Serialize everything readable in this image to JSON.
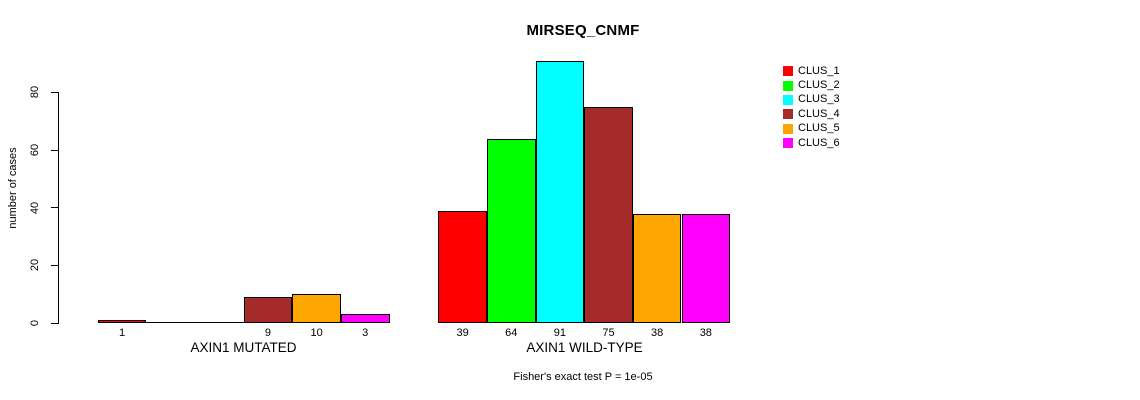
{
  "chart_data": {
    "type": "bar",
    "title": "MIRSEQ_CNMF",
    "ylabel": "number of cases",
    "xlabel": "",
    "footnote": "Fisher's exact test P = 1e-05",
    "ylim": [
      0,
      80
    ],
    "yticks": [
      0,
      20,
      40,
      60,
      80
    ],
    "grid": false,
    "legend_position": "top-right",
    "categories": [
      "AXIN1 MUTATED",
      "AXIN1 WILD-TYPE"
    ],
    "series": [
      {
        "name": "CLUS_1",
        "color": "#FF0000",
        "values": [
          1,
          39
        ]
      },
      {
        "name": "CLUS_2",
        "color": "#00FF00",
        "values": [
          0,
          64
        ]
      },
      {
        "name": "CLUS_3",
        "color": "#00FFFF",
        "values": [
          0,
          91
        ]
      },
      {
        "name": "CLUS_4",
        "color": "#A52A2A",
        "values": [
          9,
          75
        ]
      },
      {
        "name": "CLUS_5",
        "color": "#FFA500",
        "values": [
          10,
          38
        ]
      },
      {
        "name": "CLUS_6",
        "color": "#FF00FF",
        "values": [
          3,
          38
        ]
      }
    ],
    "bar_value_labels": {
      "AXIN1 MUTATED": [
        1,
        null,
        null,
        9,
        10,
        3
      ],
      "AXIN1 WILD-TYPE": [
        39,
        64,
        91,
        75,
        38,
        38
      ]
    }
  }
}
